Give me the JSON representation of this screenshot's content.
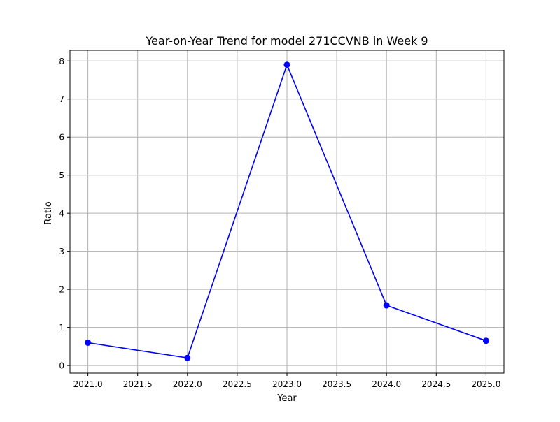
{
  "chart_data": {
    "type": "line",
    "title": "Year-on-Year Trend for model 271CCVNB in Week 9",
    "xlabel": "Year",
    "ylabel": "Ratio",
    "x": [
      2021,
      2022,
      2023,
      2024,
      2025
    ],
    "series": [
      {
        "values": [
          0.6,
          0.2,
          7.9,
          1.58,
          0.65
        ],
        "color": "#0000ff",
        "marker": "circle"
      }
    ],
    "xlim": [
      2020.82,
      2025.18
    ],
    "ylim": [
      -0.2,
      8.28
    ],
    "xticks": [
      2021.0,
      2021.5,
      2022.0,
      2022.5,
      2023.0,
      2023.5,
      2024.0,
      2024.5,
      2025.0
    ],
    "xtick_labels": [
      "2021.0",
      "2021.5",
      "2022.0",
      "2022.5",
      "2023.0",
      "2023.5",
      "2024.0",
      "2024.5",
      "2025.0"
    ],
    "yticks": [
      0,
      1,
      2,
      3,
      4,
      5,
      6,
      7,
      8
    ],
    "ytick_labels": [
      "0",
      "1",
      "2",
      "3",
      "4",
      "5",
      "6",
      "7",
      "8"
    ],
    "grid": true,
    "grid_color": "#b0b0b0"
  }
}
